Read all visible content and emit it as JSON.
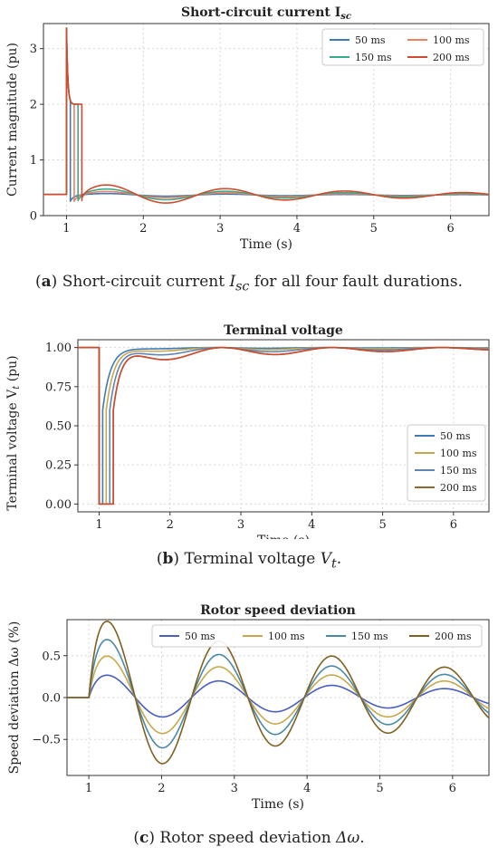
{
  "chart_data": [
    {
      "type": "line",
      "title": "Short-circuit current I",
      "title_sub": "sc",
      "xlabel": "Time (s)",
      "ylabel": "Current magnitude (pu)",
      "xlim": [
        0.7,
        6.5
      ],
      "ylim": [
        0,
        3.45
      ],
      "xticks": [
        1,
        2,
        3,
        4,
        5,
        6
      ],
      "yticks": [
        0,
        1,
        2,
        3
      ],
      "grid": true,
      "legend_position": "top-right",
      "legend_columns": 2,
      "series": [
        {
          "name": "50 ms",
          "color": "#3f7bb8",
          "fault_end": 1.05,
          "peak": 3.37,
          "tail": 2.4,
          "amp": 0.03,
          "damp": 0.3
        },
        {
          "name": "100 ms",
          "color": "#f08060",
          "fault_end": 1.1,
          "peak": 3.37,
          "tail": 2.2,
          "amp": 0.07,
          "damp": 0.3
        },
        {
          "name": "150 ms",
          "color": "#3aaa8a",
          "fault_end": 1.15,
          "peak": 3.37,
          "tail": 2.1,
          "amp": 0.12,
          "damp": 0.3
        },
        {
          "name": "200 ms",
          "color": "#d04a2e",
          "fault_end": 1.2,
          "peak": 3.37,
          "tail": 2.0,
          "amp": 0.2,
          "damp": 0.3
        }
      ],
      "prefault_value": 0.38,
      "postfault_mean": 0.37,
      "oscillation_period": 1.55
    },
    {
      "type": "line",
      "title": "Terminal voltage",
      "xlabel": "Time (s)",
      "ylabel": "Terminal voltage V",
      "ylabel_sub": "t",
      "ylabel_suffix": " (pu)",
      "xlim": [
        0.7,
        6.5
      ],
      "ylim": [
        -0.05,
        1.05
      ],
      "xticks": [
        1,
        2,
        3,
        4,
        5,
        6
      ],
      "yticks": [
        0.0,
        0.25,
        0.5,
        0.75,
        1.0
      ],
      "ytick_labels": [
        "0.00",
        "0.25",
        "0.50",
        "0.75",
        "1.00"
      ],
      "grid": true,
      "legend_position": "lower-right",
      "legend_columns": 1,
      "series": [
        {
          "name": "50 ms",
          "color": "#3f7bb8",
          "fault_end": 1.05,
          "dip": 0.01
        },
        {
          "name": "100 ms",
          "color": "#c8a84a",
          "fault_end": 1.1,
          "dip": 0.03
        },
        {
          "name": "150 ms",
          "color": "#5f86b8",
          "fault_end": 1.15,
          "dip": 0.06
        },
        {
          "name": "200 ms",
          "color": "#8a6a2c",
          "fault_end": 1.2,
          "dip": 0.1
        }
      ],
      "overlay_color": "#d04a2e",
      "overlay_dip": 0.1,
      "prefault_value": 1.0,
      "oscillation_period": 1.55
    },
    {
      "type": "line",
      "title": "Rotor speed deviation",
      "xlabel": "Time (s)",
      "ylabel": "Speed deviation Δω (%)",
      "xlim": [
        0.7,
        6.5
      ],
      "ylim": [
        -0.93,
        0.93
      ],
      "xticks": [
        1,
        2,
        3,
        4,
        5,
        6
      ],
      "yticks": [
        -0.5,
        0.0,
        0.5
      ],
      "ytick_labels": [
        "−0.5",
        "0.0",
        "0.5"
      ],
      "grid": true,
      "legend_position": "top",
      "legend_columns": 4,
      "series": [
        {
          "name": "50 ms",
          "color": "#4a5ec0",
          "amp": 0.27
        },
        {
          "name": "100 ms",
          "color": "#c8a84a",
          "amp": 0.5
        },
        {
          "name": "150 ms",
          "color": "#4a8aa8",
          "amp": 0.7
        },
        {
          "name": "200 ms",
          "color": "#806020",
          "amp": 0.92
        }
      ],
      "fault_start": 1.0,
      "first_peak_time": 1.25,
      "oscillation_period": 1.55,
      "damping": 0.2
    }
  ],
  "captions": [
    {
      "label": "a",
      "text_before": " Short-circuit current ",
      "symbol": "I",
      "symbol_sub": "sc",
      "text_after": " for all four fault durations."
    },
    {
      "label": "b",
      "text_before": " Terminal voltage ",
      "symbol": "V",
      "symbol_sub": "t",
      "text_after": "."
    },
    {
      "label": "c",
      "text_before": " Rotor speed deviation ",
      "symbol": "Δω",
      "symbol_sub": "",
      "text_after": "."
    }
  ]
}
